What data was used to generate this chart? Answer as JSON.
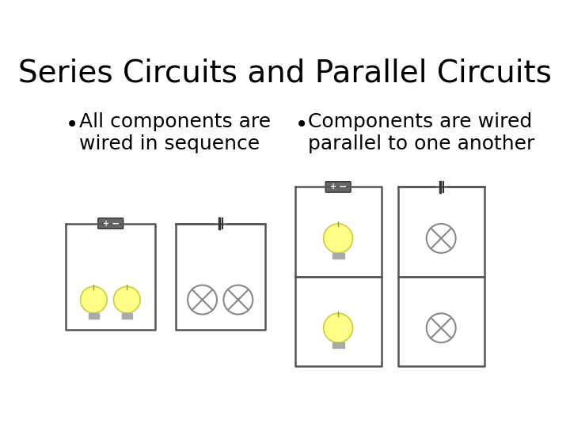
{
  "title": "Series Circuits and Parallel Circuits",
  "title_fontsize": 28,
  "bullet1": "All components are\nwired in sequence",
  "bullet2": "Components are wired\nparallel to one another",
  "bullet_fontsize": 18,
  "bg_color": "#ffffff",
  "text_color": "#000000",
  "wire_color": "#555555",
  "battery_color": "#555555",
  "bulb_on_color": "#FFFF88",
  "bulb_off_color": "#ffffff",
  "xmark_color": "#888888"
}
